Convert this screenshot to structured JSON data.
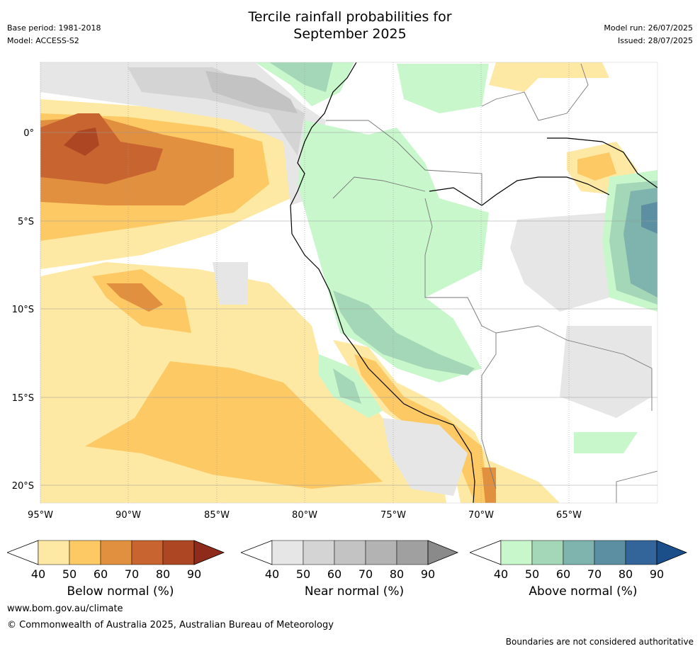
{
  "header": {
    "title_line1": "Tercile rainfall probabilities for",
    "title_line2": "September 2025",
    "base_period": "Base period: 1981-2018",
    "model": "Model: ACCESS-S2",
    "model_run": "Model run: 26/07/2025",
    "issued": "Issued: 28/07/2025"
  },
  "map": {
    "lon_labels": [
      "95°W",
      "90°W",
      "85°W",
      "80°W",
      "75°W",
      "70°W",
      "65°W"
    ],
    "lat_labels": [
      "0°",
      "5°S",
      "10°S",
      "15°S",
      "20°S"
    ],
    "lon_range": [
      -95,
      -60
    ],
    "lat_range": [
      -21,
      4
    ]
  },
  "colorbars": [
    {
      "name": "below",
      "title": "Below normal (%)",
      "ticks": [
        "40",
        "50",
        "60",
        "70",
        "80",
        "90"
      ],
      "colors": [
        "#fde9a3",
        "#fdc964",
        "#e1903f",
        "#c8642f",
        "#ad4723",
        "#8e2b1b"
      ]
    },
    {
      "name": "near",
      "title": "Near normal (%)",
      "ticks": [
        "40",
        "50",
        "60",
        "70",
        "80",
        "90"
      ],
      "colors": [
        "#e6e6e6",
        "#d4d4d4",
        "#c3c3c3",
        "#b3b3b3",
        "#a0a0a0",
        "#8a8a8a"
      ]
    },
    {
      "name": "above",
      "title": "Above normal (%)",
      "ticks": [
        "40",
        "50",
        "60",
        "70",
        "80",
        "90"
      ],
      "colors": [
        "#c9f7cc",
        "#a4d7b8",
        "#7fb4ae",
        "#5b8fa1",
        "#34659a",
        "#1a4f8a"
      ]
    }
  ],
  "footer": {
    "url": "www.bom.gov.au/climate",
    "copyright": "© Commonwealth of Australia 2025, Australian Bureau of Meteorology",
    "note": "Boundaries are not considered authoritative"
  }
}
